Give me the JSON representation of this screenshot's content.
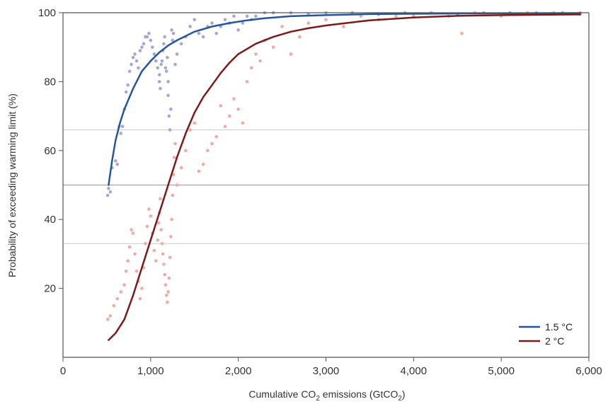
{
  "chart_data": {
    "type": "scatter",
    "xlabel": {
      "pre": "Cumulative CO",
      "sub1": "2",
      "mid": " emissions (GtCO",
      "sub2": "2",
      "post": ")"
    },
    "ylabel": "Probability of exceeding warming limit (%)",
    "xlim": [
      0,
      6000
    ],
    "ylim": [
      0,
      100
    ],
    "x_ticks": [
      0,
      1000,
      2000,
      3000,
      4000,
      5000,
      6000
    ],
    "x_tick_labels": [
      "0",
      "1,000",
      "2,000",
      "3,000",
      "4,000",
      "5,000",
      "6,000"
    ],
    "y_ticks": [
      20,
      40,
      60,
      80,
      100
    ],
    "y_tick_labels": [
      "20",
      "40",
      "60",
      "80",
      "100"
    ],
    "reference_lines": [
      {
        "y": 66,
        "color": "#cccccc"
      },
      {
        "y": 50,
        "color": "#999999"
      },
      {
        "y": 33,
        "color": "#cccccc"
      }
    ],
    "legend_position": "bottom-right",
    "series": [
      {
        "name": "1.5 °C",
        "line_color": "#2456a0",
        "point_color": "#a6a6da",
        "curve": [
          [
            520,
            50
          ],
          [
            560,
            57
          ],
          [
            600,
            63
          ],
          [
            650,
            68
          ],
          [
            700,
            72
          ],
          [
            800,
            78
          ],
          [
            900,
            83
          ],
          [
            1000,
            86
          ],
          [
            1100,
            88.5
          ],
          [
            1200,
            90.5
          ],
          [
            1300,
            92
          ],
          [
            1500,
            94.5
          ],
          [
            1700,
            96
          ],
          [
            1900,
            97
          ],
          [
            2100,
            97.8
          ],
          [
            2300,
            98.4
          ],
          [
            2600,
            99
          ],
          [
            3000,
            99.3
          ],
          [
            3500,
            99.6
          ],
          [
            4500,
            99.8
          ],
          [
            5900,
            99.9
          ]
        ],
        "points": [
          [
            510,
            47
          ],
          [
            520,
            49
          ],
          [
            540,
            48
          ],
          [
            560,
            55
          ],
          [
            600,
            57
          ],
          [
            620,
            56
          ],
          [
            640,
            67
          ],
          [
            660,
            65
          ],
          [
            680,
            67
          ],
          [
            700,
            72
          ],
          [
            720,
            77
          ],
          [
            740,
            79
          ],
          [
            760,
            83
          ],
          [
            780,
            85
          ],
          [
            800,
            87
          ],
          [
            820,
            88
          ],
          [
            840,
            86
          ],
          [
            860,
            84
          ],
          [
            880,
            89
          ],
          [
            900,
            90
          ],
          [
            920,
            91
          ],
          [
            940,
            93
          ],
          [
            960,
            93
          ],
          [
            980,
            94
          ],
          [
            1000,
            92
          ],
          [
            1020,
            90
          ],
          [
            1040,
            88
          ],
          [
            1060,
            86
          ],
          [
            1080,
            84
          ],
          [
            1100,
            82
          ],
          [
            1100,
            80
          ],
          [
            1110,
            78
          ],
          [
            1120,
            85
          ],
          [
            1130,
            86
          ],
          [
            1140,
            89
          ],
          [
            1150,
            91
          ],
          [
            1160,
            93
          ],
          [
            1170,
            84
          ],
          [
            1180,
            83
          ],
          [
            1190,
            87
          ],
          [
            1200,
            80
          ],
          [
            1200,
            76
          ],
          [
            1210,
            70
          ],
          [
            1220,
            66
          ],
          [
            1230,
            72
          ],
          [
            1240,
            95
          ],
          [
            1250,
            92
          ],
          [
            1260,
            94
          ],
          [
            1280,
            85
          ],
          [
            1300,
            88
          ],
          [
            1350,
            91
          ],
          [
            1400,
            93
          ],
          [
            1450,
            96
          ],
          [
            1500,
            98
          ],
          [
            1550,
            94
          ],
          [
            1600,
            93
          ],
          [
            1650,
            96
          ],
          [
            1700,
            97
          ],
          [
            1750,
            94
          ],
          [
            1800,
            96
          ],
          [
            1850,
            98
          ],
          [
            1900,
            97
          ],
          [
            1950,
            99
          ],
          [
            2000,
            95
          ],
          [
            2050,
            97
          ],
          [
            2100,
            99
          ],
          [
            2150,
            98
          ],
          [
            2200,
            99
          ],
          [
            2300,
            100
          ],
          [
            2400,
            100
          ],
          [
            2600,
            100
          ],
          [
            2800,
            99.5
          ],
          [
            3000,
            100
          ],
          [
            3300,
            100
          ],
          [
            3600,
            99.5
          ],
          [
            3900,
            100
          ],
          [
            4200,
            100
          ],
          [
            4500,
            99.5
          ],
          [
            4800,
            100
          ],
          [
            5100,
            100
          ],
          [
            5400,
            100
          ],
          [
            5700,
            100
          ],
          [
            5900,
            100
          ]
        ]
      },
      {
        "name": "2 °C",
        "line_color": "#7d1a1a",
        "point_color": "#f3aaa6",
        "curve": [
          [
            520,
            5
          ],
          [
            600,
            7
          ],
          [
            700,
            11
          ],
          [
            800,
            18
          ],
          [
            900,
            26
          ],
          [
            1000,
            34
          ],
          [
            1100,
            42
          ],
          [
            1200,
            50
          ],
          [
            1300,
            58
          ],
          [
            1400,
            65
          ],
          [
            1500,
            71
          ],
          [
            1600,
            75.5
          ],
          [
            1700,
            79
          ],
          [
            1800,
            82.5
          ],
          [
            1900,
            85.5
          ],
          [
            2000,
            88
          ],
          [
            2200,
            91
          ],
          [
            2400,
            93
          ],
          [
            2600,
            94.5
          ],
          [
            2800,
            95.5
          ],
          [
            3000,
            96.3
          ],
          [
            3500,
            97.8
          ],
          [
            4000,
            98.6
          ],
          [
            4500,
            99.1
          ],
          [
            5000,
            99.3
          ],
          [
            5900,
            99.5
          ]
        ],
        "points": [
          [
            510,
            11
          ],
          [
            540,
            12
          ],
          [
            580,
            15
          ],
          [
            620,
            17
          ],
          [
            660,
            19
          ],
          [
            700,
            21
          ],
          [
            720,
            25
          ],
          [
            740,
            28
          ],
          [
            760,
            32
          ],
          [
            780,
            37
          ],
          [
            800,
            36
          ],
          [
            820,
            30
          ],
          [
            840,
            25
          ],
          [
            860,
            22
          ],
          [
            880,
            17
          ],
          [
            900,
            20
          ],
          [
            920,
            26
          ],
          [
            940,
            33
          ],
          [
            960,
            38
          ],
          [
            980,
            43
          ],
          [
            1000,
            41
          ],
          [
            1020,
            36
          ],
          [
            1040,
            31
          ],
          [
            1060,
            28
          ],
          [
            1080,
            34
          ],
          [
            1090,
            39
          ],
          [
            1100,
            42
          ],
          [
            1110,
            46
          ],
          [
            1120,
            37
          ],
          [
            1130,
            33
          ],
          [
            1140,
            30
          ],
          [
            1150,
            27
          ],
          [
            1160,
            24
          ],
          [
            1170,
            21
          ],
          [
            1180,
            18
          ],
          [
            1190,
            16
          ],
          [
            1200,
            19
          ],
          [
            1210,
            23
          ],
          [
            1220,
            29
          ],
          [
            1230,
            35
          ],
          [
            1240,
            40
          ],
          [
            1250,
            47
          ],
          [
            1260,
            53
          ],
          [
            1270,
            58
          ],
          [
            1280,
            62
          ],
          [
            1300,
            50
          ],
          [
            1350,
            55
          ],
          [
            1400,
            60
          ],
          [
            1450,
            66
          ],
          [
            1500,
            68
          ],
          [
            1550,
            54
          ],
          [
            1600,
            56
          ],
          [
            1650,
            60
          ],
          [
            1700,
            62
          ],
          [
            1750,
            64
          ],
          [
            1800,
            73
          ],
          [
            1850,
            67
          ],
          [
            1900,
            70
          ],
          [
            1950,
            75
          ],
          [
            2000,
            72
          ],
          [
            2050,
            68
          ],
          [
            2100,
            80
          ],
          [
            2150,
            84
          ],
          [
            2200,
            88
          ],
          [
            2250,
            86
          ],
          [
            2300,
            92
          ],
          [
            2400,
            90
          ],
          [
            2500,
            96
          ],
          [
            2600,
            88
          ],
          [
            2700,
            93
          ],
          [
            2800,
            97
          ],
          [
            3000,
            98
          ],
          [
            3200,
            96
          ],
          [
            3400,
            99
          ],
          [
            3600,
            98
          ],
          [
            3800,
            99
          ],
          [
            4000,
            99
          ],
          [
            4200,
            100
          ],
          [
            4400,
            99
          ],
          [
            4550,
            94
          ],
          [
            4700,
            100
          ],
          [
            5000,
            99
          ],
          [
            5300,
            100
          ],
          [
            5600,
            100
          ],
          [
            5900,
            99.5
          ]
        ]
      }
    ]
  }
}
